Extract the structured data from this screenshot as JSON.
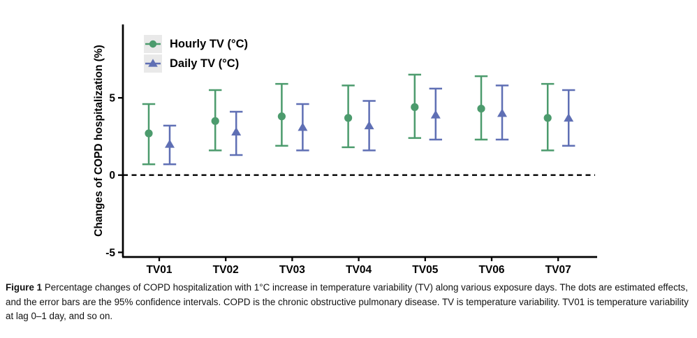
{
  "figure": {
    "caption_label": "Figure 1",
    "caption_text": " Percentage changes of COPD hospitalization with 1°C increase in temperature variability (TV) along various exposure days. The dots are estimated effects, and the error bars are the 95% confidence intervals. COPD is the chronic obstructive pulmonary disease. TV is temperature variability. TV01 is temperature variability at lag 0–1 day, and so on."
  },
  "chart_data": {
    "type": "errorbar",
    "title": "",
    "xlabel": "",
    "ylabel": "Changes of COPD hospitalization (%)",
    "categories": [
      "TV01",
      "TV02",
      "TV03",
      "TV04",
      "TV05",
      "TV06",
      "TV07"
    ],
    "yticks": [
      5,
      0,
      -5
    ],
    "ylim": [
      -5.3,
      9.75
    ],
    "grid": false,
    "zero_reference_line": {
      "y": 0,
      "style": "dashed",
      "color": "#000000"
    },
    "legend_position": "top-left-inside",
    "series": [
      {
        "name": "Hourly TV (°C)",
        "marker": "circle",
        "color": "#4c9b6d",
        "estimates": [
          2.7,
          3.5,
          3.8,
          3.7,
          4.4,
          4.3,
          3.7
        ],
        "ci_low": [
          0.7,
          1.6,
          1.9,
          1.8,
          2.4,
          2.3,
          1.6
        ],
        "ci_high": [
          4.6,
          5.5,
          5.9,
          5.8,
          6.5,
          6.4,
          5.9
        ]
      },
      {
        "name": "Daily TV (°C)",
        "marker": "triangle",
        "color": "#5f6fb4",
        "estimates": [
          2.0,
          2.8,
          3.1,
          3.2,
          3.9,
          4.0,
          3.7
        ],
        "ci_low": [
          0.7,
          1.3,
          1.6,
          1.6,
          2.3,
          2.3,
          1.9
        ],
        "ci_high": [
          3.2,
          4.1,
          4.6,
          4.8,
          5.6,
          5.8,
          5.5
        ]
      }
    ]
  }
}
